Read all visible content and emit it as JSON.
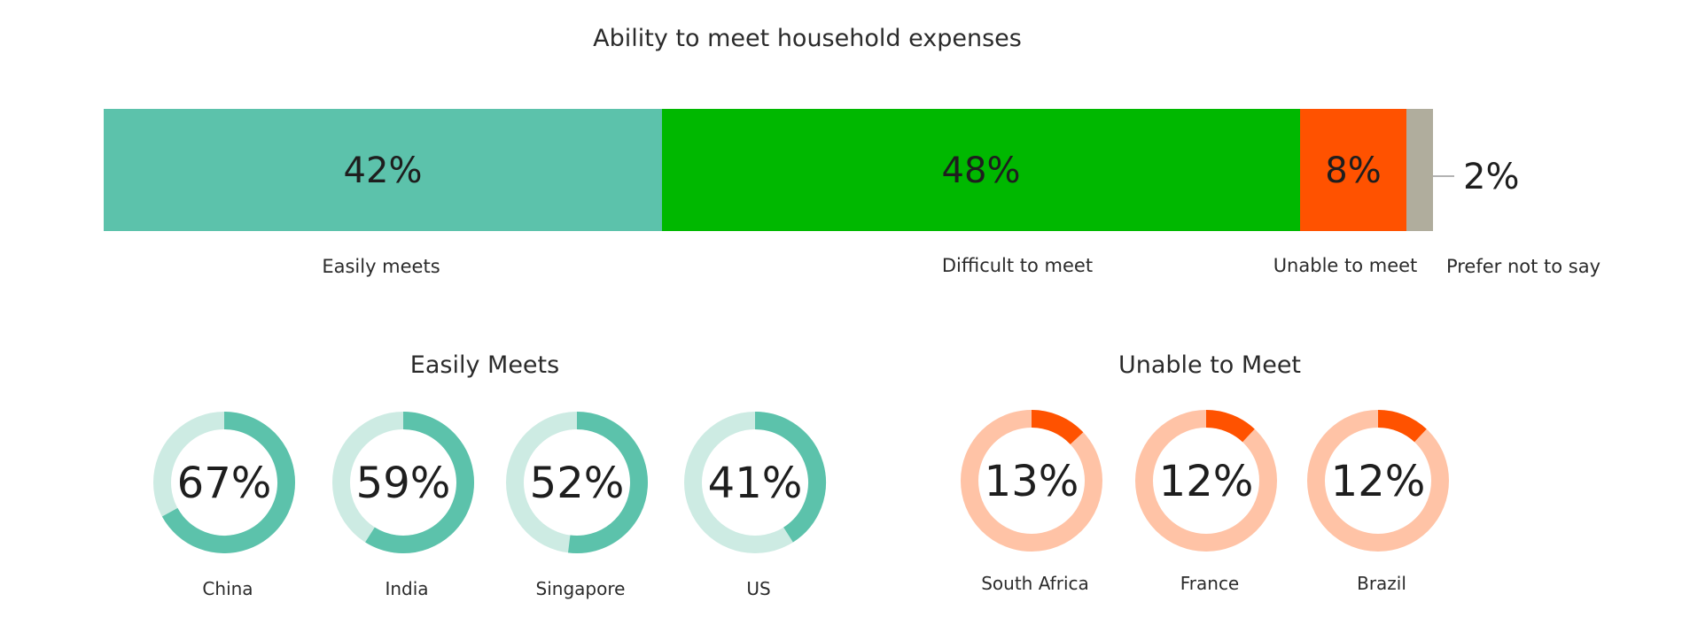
{
  "chart_data": [
    {
      "type": "bar",
      "orientation": "horizontal-stacked",
      "title": "Ability to meet household expenses",
      "categories": [
        "Easily meets",
        "Difficult to meet",
        "Unable to meet",
        "Prefer not to say"
      ],
      "values": [
        42,
        48,
        8,
        2
      ],
      "value_labels": [
        "42%",
        "48%",
        "8%",
        "2%"
      ],
      "colors": [
        "#5cc2ab",
        "#00b800",
        "#ff5200",
        "#b0ad9d"
      ]
    },
    {
      "type": "pie",
      "subtype": "donut",
      "title": "Easily Meets",
      "categories": [
        "China",
        "India",
        "Singapore",
        "US"
      ],
      "values": [
        67,
        59,
        52,
        41
      ],
      "value_labels": [
        "67%",
        "59%",
        "52%",
        "41%"
      ],
      "colors": {
        "filled": "#5cc2ab",
        "track": "#cdebe3"
      }
    },
    {
      "type": "pie",
      "subtype": "donut",
      "title": "Unable to Meet",
      "categories": [
        "South Africa",
        "France",
        "Brazil"
      ],
      "values": [
        13,
        12,
        12
      ],
      "value_labels": [
        "13%",
        "12%",
        "12%"
      ],
      "colors": {
        "filled": "#ff5200",
        "track": "#ffc3a6"
      }
    }
  ]
}
